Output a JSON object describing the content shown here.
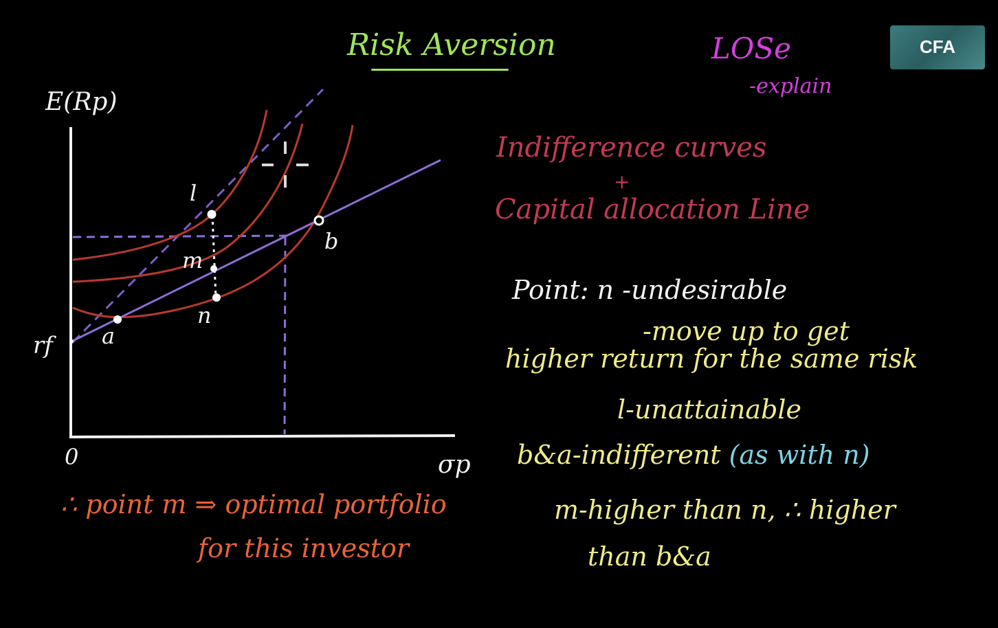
{
  "title": "Risk Aversion",
  "los": {
    "label": "LOSe",
    "sub": "-explain"
  },
  "topic": {
    "line1": "Indifference curves",
    "plus": "+",
    "line2": "Capital allocation Line"
  },
  "logo": "CFA",
  "axes": {
    "y_label": "E(Rp)",
    "x_label": "σp",
    "origin": "0",
    "rf": "rf"
  },
  "points": {
    "l": "l",
    "m": "m",
    "n": "n",
    "a": "a",
    "b": "b"
  },
  "notes": {
    "line1": "Point: n -undesirable",
    "line2": "-move up to get",
    "line3": "higher return for the same risk",
    "line4": "l-unattainable",
    "line5a": "b&a-indifferent",
    "line5b": "(as with n)",
    "line6": "m-higher than n, ∴ higher",
    "line7": "than b&a"
  },
  "conclusion": {
    "line1": "∴ point m ⇒ optimal portfolio",
    "line2": "for this investor"
  },
  "colors": {
    "axes": "#f2f2f2",
    "curves": "#b83a2e",
    "cal": "#8c6fd6",
    "dashed": "#8c6fd6",
    "title": "#9ee65a",
    "los": "#d63fe0",
    "topic": "#c23a52",
    "notes": "#f0ec8a",
    "aside": "#7ed2e4",
    "conclusion": "#e8643a"
  }
}
